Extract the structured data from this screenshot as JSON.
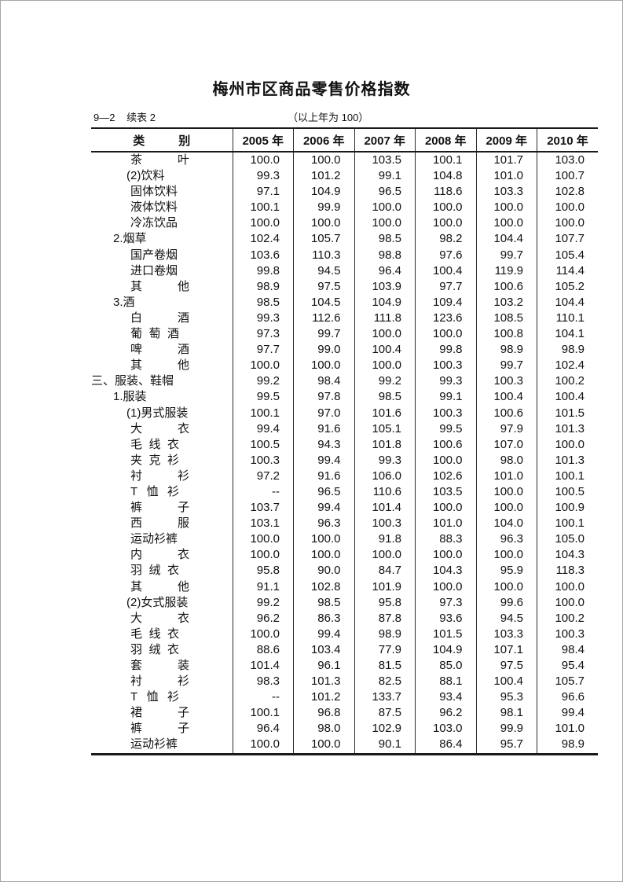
{
  "header": {
    "title": "梅州市区商品零售价格指数",
    "table_number": "9—2",
    "continuation_label": "续表 2",
    "base_note": "（以上年为 100）"
  },
  "table": {
    "category_header": "类别",
    "year_columns": [
      "2005 年",
      "2006 年",
      "2007 年",
      "2008 年",
      "2009 年",
      "2010 年"
    ],
    "rows": [
      {
        "label": "茶叶",
        "indent": 3,
        "values": [
          "100.0",
          "100.0",
          "103.5",
          "100.1",
          "101.7",
          "103.0"
        ]
      },
      {
        "label": "(2)饮料",
        "indent": 2,
        "values": [
          "99.3",
          "101.2",
          "99.1",
          "104.8",
          "101.0",
          "100.7"
        ]
      },
      {
        "label": "固体饮料",
        "indent": 3,
        "values": [
          "97.1",
          "104.9",
          "96.5",
          "118.6",
          "103.3",
          "102.8"
        ]
      },
      {
        "label": "液体饮料",
        "indent": 3,
        "values": [
          "100.1",
          "99.9",
          "100.0",
          "100.0",
          "100.0",
          "100.0"
        ]
      },
      {
        "label": "冷冻饮品",
        "indent": 3,
        "values": [
          "100.0",
          "100.0",
          "100.0",
          "100.0",
          "100.0",
          "100.0"
        ]
      },
      {
        "label": "2.烟草",
        "indent": 1,
        "values": [
          "102.4",
          "105.7",
          "98.5",
          "98.2",
          "104.4",
          "107.7"
        ]
      },
      {
        "label": "国产卷烟",
        "indent": 3,
        "values": [
          "103.6",
          "110.3",
          "98.8",
          "97.6",
          "99.7",
          "105.4"
        ]
      },
      {
        "label": "进口卷烟",
        "indent": 3,
        "values": [
          "99.8",
          "94.5",
          "96.4",
          "100.4",
          "119.9",
          "114.4"
        ]
      },
      {
        "label": "其他",
        "indent": 3,
        "values": [
          "98.9",
          "97.5",
          "103.9",
          "97.7",
          "100.6",
          "105.2"
        ]
      },
      {
        "label": "3.酒",
        "indent": 1,
        "values": [
          "98.5",
          "104.5",
          "104.9",
          "109.4",
          "103.2",
          "104.4"
        ]
      },
      {
        "label": "白酒",
        "indent": 3,
        "values": [
          "99.3",
          "112.6",
          "111.8",
          "123.6",
          "108.5",
          "110.1"
        ]
      },
      {
        "label": "葡萄酒",
        "indent": 3,
        "values": [
          "97.3",
          "99.7",
          "100.0",
          "100.0",
          "100.8",
          "104.1"
        ]
      },
      {
        "label": "啤酒",
        "indent": 3,
        "values": [
          "97.7",
          "99.0",
          "100.4",
          "99.8",
          "98.9",
          "98.9"
        ]
      },
      {
        "label": "其他",
        "indent": 3,
        "values": [
          "100.0",
          "100.0",
          "100.0",
          "100.3",
          "99.7",
          "102.4"
        ]
      },
      {
        "label": "三、服装、鞋帽",
        "indent": 0,
        "values": [
          "99.2",
          "98.4",
          "99.2",
          "99.3",
          "100.3",
          "100.2"
        ]
      },
      {
        "label": "1.服装",
        "indent": 1,
        "values": [
          "99.5",
          "97.8",
          "98.5",
          "99.1",
          "100.4",
          "100.4"
        ]
      },
      {
        "label": "(1)男式服装",
        "indent": 2,
        "values": [
          "100.1",
          "97.0",
          "101.6",
          "100.3",
          "100.6",
          "101.5"
        ]
      },
      {
        "label": "大衣",
        "indent": 3,
        "values": [
          "99.4",
          "91.6",
          "105.1",
          "99.5",
          "97.9",
          "101.3"
        ]
      },
      {
        "label": "毛线衣",
        "indent": 3,
        "values": [
          "100.5",
          "94.3",
          "101.8",
          "100.6",
          "107.0",
          "100.0"
        ]
      },
      {
        "label": "夹克衫",
        "indent": 3,
        "values": [
          "100.3",
          "99.4",
          "99.3",
          "100.0",
          "98.0",
          "101.3"
        ]
      },
      {
        "label": "衬衫",
        "indent": 3,
        "values": [
          "97.2",
          "91.6",
          "106.0",
          "102.6",
          "101.0",
          "100.1"
        ]
      },
      {
        "label": "T恤衫",
        "indent": 3,
        "values": [
          "--",
          "96.5",
          "110.6",
          "103.5",
          "100.0",
          "100.5"
        ]
      },
      {
        "label": "裤子",
        "indent": 3,
        "values": [
          "103.7",
          "99.4",
          "101.4",
          "100.0",
          "100.0",
          "100.9"
        ]
      },
      {
        "label": "西服",
        "indent": 3,
        "values": [
          "103.1",
          "96.3",
          "100.3",
          "101.0",
          "104.0",
          "100.1"
        ]
      },
      {
        "label": "运动衫裤",
        "indent": 3,
        "values": [
          "100.0",
          "100.0",
          "91.8",
          "88.3",
          "96.3",
          "105.0"
        ]
      },
      {
        "label": "内衣",
        "indent": 3,
        "values": [
          "100.0",
          "100.0",
          "100.0",
          "100.0",
          "100.0",
          "104.3"
        ]
      },
      {
        "label": "羽绒衣",
        "indent": 3,
        "values": [
          "95.8",
          "90.0",
          "84.7",
          "104.3",
          "95.9",
          "118.3"
        ]
      },
      {
        "label": "其他",
        "indent": 3,
        "values": [
          "91.1",
          "102.8",
          "101.9",
          "100.0",
          "100.0",
          "100.0"
        ]
      },
      {
        "label": "(2)女式服装",
        "indent": 2,
        "values": [
          "99.2",
          "98.5",
          "95.8",
          "97.3",
          "99.6",
          "100.0"
        ]
      },
      {
        "label": "大衣",
        "indent": 3,
        "values": [
          "96.2",
          "86.3",
          "87.8",
          "93.6",
          "94.5",
          "100.2"
        ]
      },
      {
        "label": "毛线衣",
        "indent": 3,
        "values": [
          "100.0",
          "99.4",
          "98.9",
          "101.5",
          "103.3",
          "100.3"
        ]
      },
      {
        "label": "羽绒衣",
        "indent": 3,
        "values": [
          "88.6",
          "103.4",
          "77.9",
          "104.9",
          "107.1",
          "98.4"
        ]
      },
      {
        "label": "套装",
        "indent": 3,
        "values": [
          "101.4",
          "96.1",
          "81.5",
          "85.0",
          "97.5",
          "95.4"
        ]
      },
      {
        "label": "衬衫",
        "indent": 3,
        "values": [
          "98.3",
          "101.3",
          "82.5",
          "88.1",
          "100.4",
          "105.7"
        ]
      },
      {
        "label": "T恤衫",
        "indent": 3,
        "values": [
          "--",
          "101.2",
          "133.7",
          "93.4",
          "95.3",
          "96.6"
        ]
      },
      {
        "label": "裙子",
        "indent": 3,
        "values": [
          "100.1",
          "96.8",
          "87.5",
          "96.2",
          "98.1",
          "99.4"
        ]
      },
      {
        "label": "裤子",
        "indent": 3,
        "values": [
          "96.4",
          "98.0",
          "102.9",
          "103.0",
          "99.9",
          "101.0"
        ]
      },
      {
        "label": "运动衫裤",
        "indent": 3,
        "values": [
          "100.0",
          "100.0",
          "90.1",
          "86.4",
          "95.7",
          "98.9"
        ]
      }
    ]
  }
}
